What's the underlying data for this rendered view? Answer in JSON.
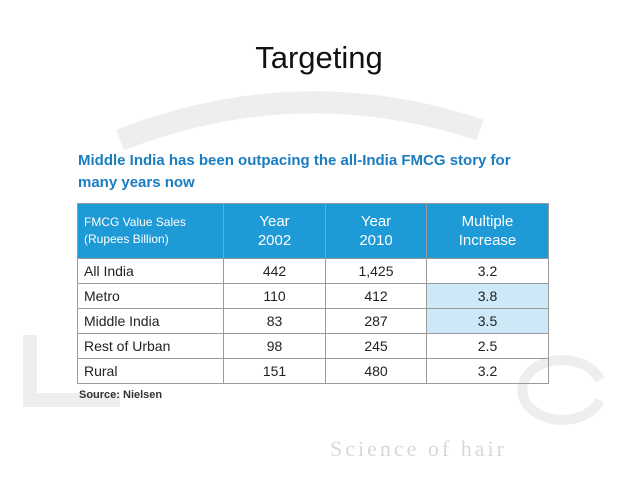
{
  "slide": {
    "title": "Targeting",
    "subtitle_lines": [
      "Middle India has been outpacing the all-India FMCG story for",
      "many years now"
    ],
    "table": {
      "header": [
        [
          "FMCG Value Sales",
          "(Rupees Billion)"
        ],
        [
          "Year",
          "2002"
        ],
        [
          "Year",
          "2010"
        ],
        [
          "Multiple",
          "Increase"
        ]
      ],
      "rows": [
        [
          "All India",
          "442",
          "1,425",
          "3.2"
        ],
        [
          "Metro",
          "110",
          "412",
          "3.8"
        ],
        [
          "Middle India",
          "83",
          "287",
          "3.5"
        ],
        [
          "Rest of Urban",
          "98",
          "245",
          "2.5"
        ],
        [
          "Rural",
          "151",
          "480",
          "3.2"
        ]
      ],
      "highlighted_cells": [
        [
          1,
          3
        ],
        [
          2,
          3
        ]
      ]
    },
    "source": "Source: Nielsen",
    "watermark": "Science of hair"
  }
}
